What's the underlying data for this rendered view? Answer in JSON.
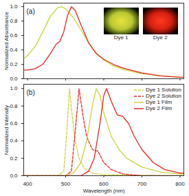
{
  "chart_data": [
    {
      "type": "line",
      "panel_label": "(a)",
      "ylabel": "Normalized Absorbance",
      "inset_labels": [
        "Dye 1",
        "Dye 2"
      ],
      "xlim": [
        390,
        810
      ],
      "xticks": [
        400,
        500,
        600,
        700,
        800
      ],
      "ylim": [
        0,
        1.05
      ],
      "yticks": [
        {
          "value": 0,
          "label": "0.0"
        },
        0.2,
        0.4,
        0.6,
        0.8,
        {
          "value": 1,
          "label": "1.0"
        }
      ],
      "tick_labels": "y",
      "series": [
        {
          "color": "#c8d43a",
          "line_style": "solid",
          "x": [
            390,
            400,
            420,
            440,
            460,
            480,
            490,
            500,
            520,
            540,
            560,
            580,
            600,
            625,
            650,
            700,
            750,
            800,
            810
          ],
          "values": [
            0.28,
            0.32,
            0.45,
            0.65,
            0.87,
            0.99,
            1.0,
            0.97,
            0.85,
            0.68,
            0.5,
            0.36,
            0.26,
            0.18,
            0.13,
            0.07,
            0.04,
            0.02,
            0.02
          ]
        },
        {
          "color": "#e8251f",
          "line_style": "solid",
          "x": [
            390,
            400,
            420,
            440,
            460,
            475,
            485,
            495,
            505,
            515,
            525,
            540,
            560,
            580,
            600,
            625,
            650,
            700,
            750,
            800,
            810
          ],
          "values": [
            0.12,
            0.12,
            0.14,
            0.2,
            0.35,
            0.48,
            0.52,
            0.65,
            0.88,
            1.0,
            0.95,
            0.75,
            0.5,
            0.35,
            0.27,
            0.2,
            0.15,
            0.08,
            0.04,
            0.02,
            0.02
          ]
        }
      ]
    },
    {
      "type": "line",
      "panel_label": "(b)",
      "xlabel": "Wavelength (nm)",
      "ylabel": "Normalized Intensity",
      "xlim": [
        390,
        810
      ],
      "xticks": [
        400,
        500,
        600,
        700,
        800
      ],
      "ylim": [
        0,
        1.05
      ],
      "yticks": [
        {
          "value": 0,
          "label": "0.0"
        },
        0.2,
        0.4,
        0.6,
        0.8,
        {
          "value": 1,
          "label": "1.0"
        }
      ],
      "legend": "upper right",
      "series": [
        {
          "name": "Dye 1 Solution",
          "color": "#c8d43a",
          "line_style": "dashed",
          "x": [
            390,
            480,
            495,
            503,
            510,
            517,
            525,
            535,
            550,
            570,
            600,
            810
          ],
          "values": [
            0,
            0,
            0.05,
            0.5,
            1.0,
            0.7,
            0.4,
            0.2,
            0.08,
            0.03,
            0.01,
            0
          ]
        },
        {
          "name": "Dye 2 Solution",
          "color": "#e8251f",
          "line_style": "dashed",
          "x": [
            390,
            500,
            515,
            525,
            535,
            545,
            555,
            570,
            585,
            600,
            620,
            650,
            700,
            810
          ],
          "values": [
            0,
            0,
            0.05,
            0.5,
            1.0,
            0.7,
            0.45,
            0.3,
            0.28,
            0.15,
            0.07,
            0.02,
            0,
            0
          ]
        },
        {
          "name": "Dye 1 Film",
          "color": "#c8d43a",
          "line_style": "solid",
          "x": [
            390,
            500,
            520,
            540,
            555,
            570,
            580,
            590,
            600,
            620,
            640,
            660,
            700,
            750,
            800,
            810
          ],
          "values": [
            0,
            0,
            0.03,
            0.15,
            0.4,
            0.8,
            1.0,
            0.92,
            0.72,
            0.45,
            0.3,
            0.2,
            0.1,
            0.04,
            0.02,
            0.02
          ]
        },
        {
          "name": "Dye 2 Film",
          "color": "#e8251f",
          "line_style": "solid",
          "x": [
            390,
            540,
            560,
            575,
            590,
            600,
            607,
            620,
            635,
            650,
            665,
            680,
            700,
            730,
            760,
            800,
            810
          ],
          "values": [
            0,
            0,
            0.05,
            0.2,
            0.6,
            0.92,
            1.0,
            0.85,
            0.7,
            0.68,
            0.6,
            0.45,
            0.3,
            0.15,
            0.07,
            0.03,
            0.03
          ]
        }
      ]
    }
  ]
}
